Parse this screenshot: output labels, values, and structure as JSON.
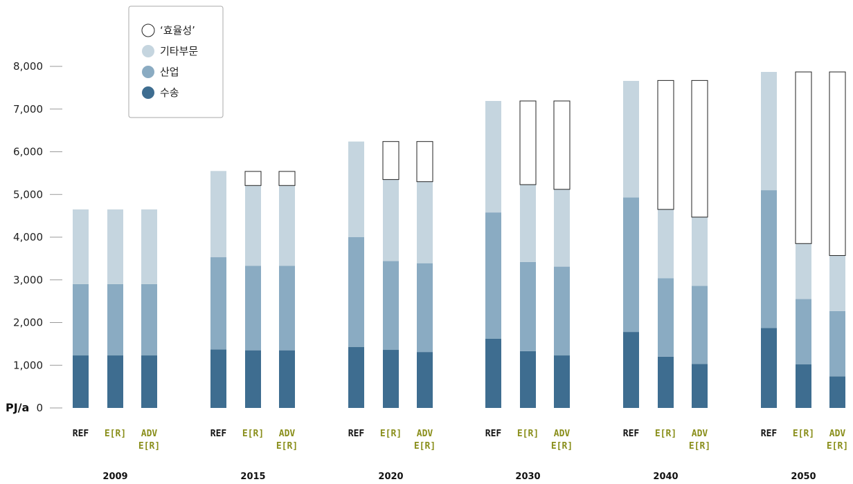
{
  "chart_data": {
    "type": "bar",
    "stacked": true,
    "y_unit_label": "PJ/a",
    "ylim": [
      0,
      8000
    ],
    "yticks": [
      0,
      1000,
      2000,
      3000,
      4000,
      5000,
      6000,
      7000,
      8000
    ],
    "ytick_labels": [
      "0",
      "1,000",
      "2,000",
      "3,000",
      "4,000",
      "5,000",
      "6,000",
      "7,000",
      "8,000"
    ],
    "years": [
      "2009",
      "2015",
      "2020",
      "2030",
      "2040",
      "2050"
    ],
    "scenarios": [
      {
        "label": "REF",
        "lines": [
          "REF"
        ],
        "color": "#111111"
      },
      {
        "label": "E[R]",
        "lines": [
          "E[R]"
        ],
        "color": "#8a8f1c"
      },
      {
        "label": "ADV E[R]",
        "lines": [
          "ADV",
          "E[R]"
        ],
        "color": "#8a8f1c"
      }
    ],
    "series": [
      {
        "name": "수송",
        "color": "#3e6d90",
        "values": [
          1230,
          1230,
          1230,
          1370,
          1350,
          1350,
          1430,
          1360,
          1310,
          1620,
          1330,
          1230,
          1780,
          1200,
          1030,
          1870,
          1020,
          740
        ]
      },
      {
        "name": "산업",
        "color": "#8aabc2",
        "values": [
          1670,
          1670,
          1670,
          2160,
          1980,
          1980,
          2570,
          2080,
          2080,
          2960,
          2090,
          2080,
          3150,
          1840,
          1830,
          3230,
          1530,
          1530
        ]
      },
      {
        "name": "기타부문",
        "color": "#c5d5df",
        "values": [
          1750,
          1750,
          1750,
          2020,
          1880,
          1880,
          2240,
          1910,
          1910,
          2610,
          1810,
          1810,
          2730,
          1610,
          1610,
          2770,
          1300,
          1300
        ]
      },
      {
        "name": "'효율성'",
        "color": "#ffffff",
        "values": [
          0,
          0,
          0,
          0,
          330,
          330,
          0,
          890,
          940,
          0,
          1960,
          2070,
          0,
          3020,
          3200,
          0,
          4020,
          4300
        ]
      }
    ],
    "legend": {
      "placement": "top-left",
      "items": [
        {
          "label": "‘효율성’",
          "color": "#ffffff"
        },
        {
          "label": "기타부문",
          "color": "#c5d5df"
        },
        {
          "label": "산업",
          "color": "#8aabc2"
        },
        {
          "label": "수송",
          "color": "#3e6d90"
        }
      ]
    },
    "grid": false
  }
}
